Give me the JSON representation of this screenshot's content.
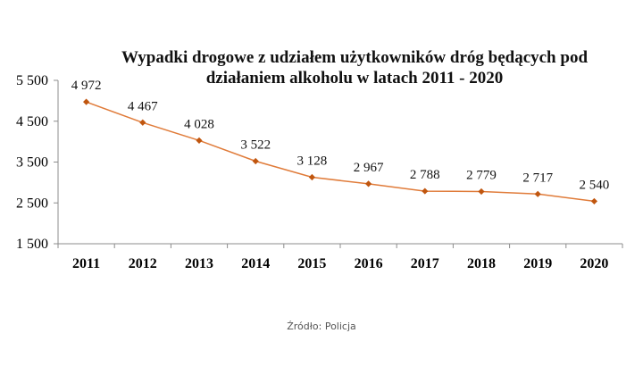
{
  "source": "Źródło: Policja",
  "chart_data": {
    "type": "line",
    "title_lines": [
      "Wypadki drogowe z udziałem użytkowników dróg będących pod",
      "działaniem alkoholu  w latach 2011 - 2020"
    ],
    "categories": [
      "2011",
      "2012",
      "2013",
      "2014",
      "2015",
      "2016",
      "2017",
      "2018",
      "2019",
      "2020"
    ],
    "values": [
      4972,
      4467,
      4028,
      3522,
      3128,
      2967,
      2788,
      2779,
      2717,
      2540
    ],
    "data_labels": [
      "4 972",
      "4 467",
      "4 028",
      "3 522",
      "3 128",
      "2 967",
      "2 788",
      "2 779",
      "2 717",
      "2 540"
    ],
    "y_ticks": [
      1500,
      2500,
      3500,
      4500,
      5500
    ],
    "y_tick_labels": [
      "1 500",
      "2 500",
      "3 500",
      "4 500",
      "5 500"
    ],
    "ylim": [
      1500,
      5500
    ],
    "xlabel": "",
    "ylabel": "",
    "grid": false,
    "legend": "none",
    "line_color": "#e07b39",
    "marker_color": "#c0560f"
  }
}
